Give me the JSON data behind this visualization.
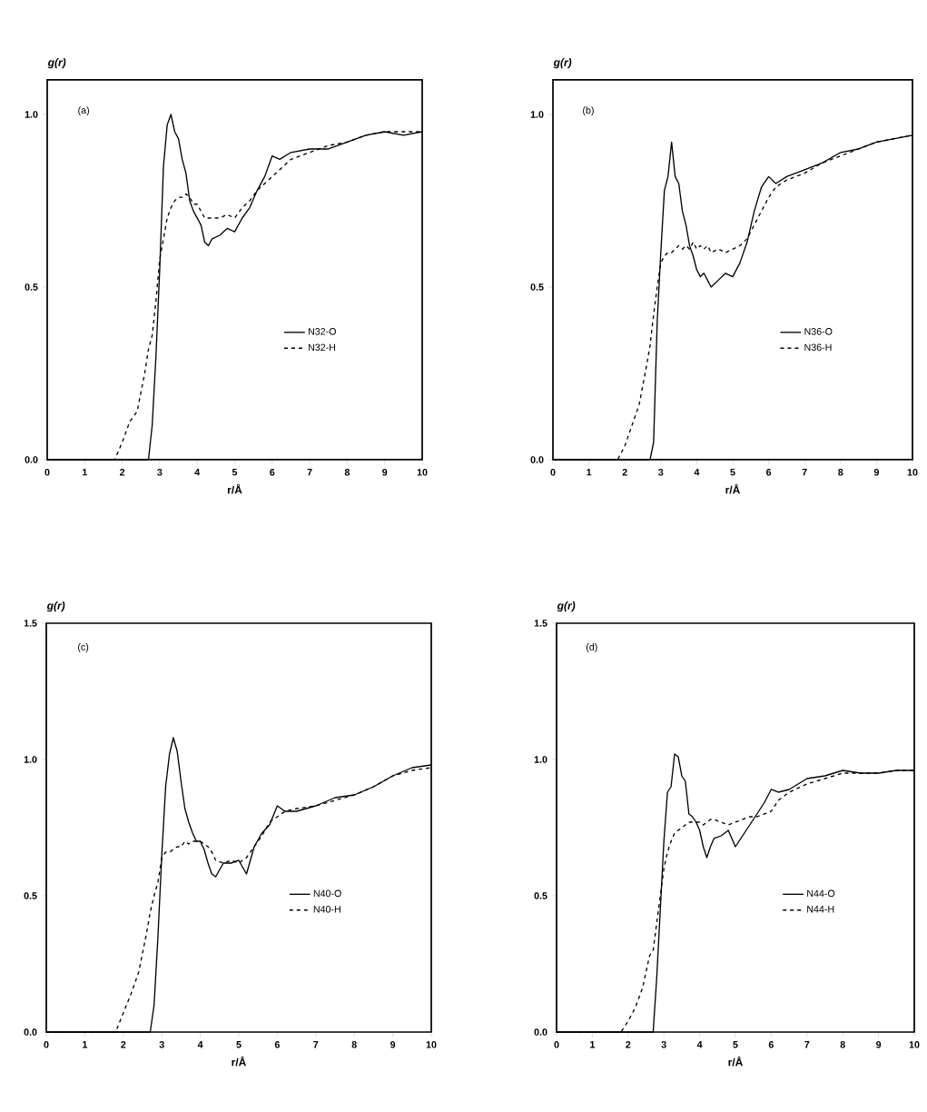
{
  "chart_data": [
    {
      "type": "line",
      "annotations": [
        "(a)"
      ],
      "ylabel": "g(r)",
      "xlabel": "r/Å",
      "legend": "right",
      "x": [
        0,
        1.8,
        2.0,
        2.2,
        2.4,
        2.6,
        2.7,
        2.8,
        2.9,
        3.0,
        3.1,
        3.2,
        3.3,
        3.4,
        3.5,
        3.6,
        3.7,
        3.8,
        3.9,
        4.0,
        4.1,
        4.2,
        4.3,
        4.4,
        4.6,
        4.8,
        5.0,
        5.2,
        5.4,
        5.6,
        5.8,
        6.0,
        6.2,
        6.5,
        7.0,
        7.5,
        8.0,
        8.5,
        9.0,
        9.5,
        10
      ],
      "series": [
        {
          "name": "N32-O",
          "color": "#000000",
          "line_style": "solid",
          "values": [
            0,
            0,
            0,
            0,
            0,
            0,
            0,
            0.1,
            0.3,
            0.55,
            0.85,
            0.97,
            1.0,
            0.95,
            0.93,
            0.87,
            0.83,
            0.75,
            0.72,
            0.7,
            0.68,
            0.63,
            0.62,
            0.64,
            0.65,
            0.67,
            0.66,
            0.7,
            0.73,
            0.78,
            0.82,
            0.88,
            0.87,
            0.89,
            0.9,
            0.9,
            0.92,
            0.94,
            0.95,
            0.94,
            0.95
          ]
        },
        {
          "name": "N32-H",
          "color": "#000000",
          "line_style": "dashed",
          "values": [
            0,
            0,
            0.05,
            0.11,
            0.14,
            0.25,
            0.32,
            0.36,
            0.46,
            0.58,
            0.64,
            0.7,
            0.73,
            0.75,
            0.76,
            0.76,
            0.77,
            0.76,
            0.74,
            0.74,
            0.72,
            0.7,
            0.7,
            0.7,
            0.7,
            0.71,
            0.7,
            0.73,
            0.75,
            0.78,
            0.8,
            0.82,
            0.84,
            0.87,
            0.89,
            0.91,
            0.92,
            0.94,
            0.95,
            0.95,
            0.95
          ]
        }
      ],
      "xlim": [
        0,
        10
      ],
      "ylim": [
        0,
        1.1
      ],
      "xticks": [
        0,
        1,
        2,
        3,
        4,
        5,
        6,
        7,
        8,
        9,
        10
      ],
      "yticks": [
        {
          "value": 0,
          "label": "0.0"
        },
        {
          "value": 0.5,
          "label": "0.5"
        },
        {
          "value": 1,
          "label": "1.0"
        }
      ]
    },
    {
      "type": "line",
      "annotations": [
        "(b)"
      ],
      "ylabel": "g(r)",
      "xlabel": "r/Å",
      "legend": "right",
      "x": [
        0,
        1.8,
        2.0,
        2.2,
        2.4,
        2.6,
        2.7,
        2.8,
        2.9,
        3.0,
        3.1,
        3.2,
        3.3,
        3.4,
        3.5,
        3.6,
        3.7,
        3.8,
        3.9,
        4.0,
        4.1,
        4.2,
        4.3,
        4.4,
        4.6,
        4.8,
        5.0,
        5.2,
        5.4,
        5.6,
        5.8,
        6.0,
        6.2,
        6.5,
        7.0,
        7.5,
        8.0,
        8.5,
        9.0,
        9.5,
        10
      ],
      "series": [
        {
          "name": "N36-O",
          "color": "#000000",
          "line_style": "solid",
          "values": [
            0,
            0,
            0,
            0,
            0,
            0,
            0,
            0.05,
            0.4,
            0.6,
            0.78,
            0.82,
            0.92,
            0.82,
            0.8,
            0.72,
            0.68,
            0.62,
            0.59,
            0.55,
            0.53,
            0.54,
            0.52,
            0.5,
            0.52,
            0.54,
            0.53,
            0.57,
            0.63,
            0.72,
            0.79,
            0.82,
            0.8,
            0.82,
            0.84,
            0.86,
            0.89,
            0.9,
            0.92,
            0.93,
            0.94
          ]
        },
        {
          "name": "N36-H",
          "color": "#000000",
          "line_style": "dashed",
          "values": [
            0,
            0,
            0.04,
            0.1,
            0.16,
            0.27,
            0.33,
            0.42,
            0.5,
            0.57,
            0.59,
            0.6,
            0.6,
            0.61,
            0.62,
            0.61,
            0.62,
            0.61,
            0.63,
            0.61,
            0.62,
            0.61,
            0.62,
            0.6,
            0.61,
            0.6,
            0.61,
            0.62,
            0.64,
            0.68,
            0.72,
            0.76,
            0.79,
            0.81,
            0.83,
            0.86,
            0.88,
            0.9,
            0.92,
            0.93,
            0.94
          ]
        }
      ],
      "xlim": [
        0,
        10
      ],
      "ylim": [
        0,
        1.1
      ],
      "xticks": [
        0,
        1,
        2,
        3,
        4,
        5,
        6,
        7,
        8,
        9,
        10
      ],
      "yticks": [
        {
          "value": 0,
          "label": "0.0"
        },
        {
          "value": 0.5,
          "label": "0.5"
        },
        {
          "value": 1,
          "label": "1.0"
        }
      ]
    },
    {
      "type": "line",
      "annotations": [
        "(c)"
      ],
      "ylabel": "g(r)",
      "xlabel": "r/Å",
      "legend": "right",
      "x": [
        0,
        1.8,
        2.0,
        2.2,
        2.4,
        2.6,
        2.7,
        2.8,
        2.9,
        3.0,
        3.1,
        3.2,
        3.3,
        3.4,
        3.5,
        3.6,
        3.7,
        3.8,
        3.9,
        4.0,
        4.1,
        4.2,
        4.3,
        4.4,
        4.6,
        4.8,
        5.0,
        5.2,
        5.4,
        5.6,
        5.8,
        6.0,
        6.2,
        6.5,
        7.0,
        7.5,
        8.0,
        8.5,
        9.0,
        9.5,
        10
      ],
      "series": [
        {
          "name": "N40-O",
          "color": "#000000",
          "line_style": "solid",
          "values": [
            0,
            0,
            0,
            0,
            0,
            0,
            0,
            0.1,
            0.35,
            0.65,
            0.9,
            1.02,
            1.08,
            1.03,
            0.92,
            0.82,
            0.77,
            0.73,
            0.7,
            0.7,
            0.67,
            0.62,
            0.58,
            0.57,
            0.62,
            0.62,
            0.63,
            0.58,
            0.68,
            0.73,
            0.76,
            0.83,
            0.81,
            0.81,
            0.83,
            0.86,
            0.87,
            0.9,
            0.94,
            0.97,
            0.98
          ]
        },
        {
          "name": "N40-H",
          "color": "#000000",
          "line_style": "dashed",
          "values": [
            0,
            0,
            0.07,
            0.14,
            0.22,
            0.36,
            0.44,
            0.5,
            0.55,
            0.64,
            0.66,
            0.66,
            0.67,
            0.68,
            0.68,
            0.7,
            0.69,
            0.7,
            0.7,
            0.7,
            0.69,
            0.68,
            0.66,
            0.63,
            0.62,
            0.63,
            0.62,
            0.64,
            0.68,
            0.72,
            0.77,
            0.79,
            0.81,
            0.82,
            0.83,
            0.85,
            0.87,
            0.9,
            0.94,
            0.96,
            0.97
          ]
        }
      ],
      "xlim": [
        0,
        10
      ],
      "ylim": [
        0,
        1.5
      ],
      "xticks": [
        0,
        1,
        2,
        3,
        4,
        5,
        6,
        7,
        8,
        9,
        10
      ],
      "yticks": [
        {
          "value": 0,
          "label": "0.0"
        },
        {
          "value": 0.5,
          "label": "0.5"
        },
        {
          "value": 1,
          "label": "1.0"
        },
        {
          "value": 1.5,
          "label": "1.5"
        }
      ]
    },
    {
      "type": "line",
      "annotations": [
        "(d)"
      ],
      "ylabel": "g(r)",
      "xlabel": "r/Å",
      "legend": "right",
      "x": [
        0,
        1.8,
        2.0,
        2.2,
        2.4,
        2.6,
        2.7,
        2.8,
        2.9,
        3.0,
        3.1,
        3.2,
        3.3,
        3.4,
        3.5,
        3.6,
        3.7,
        3.8,
        3.9,
        4.0,
        4.1,
        4.2,
        4.3,
        4.4,
        4.6,
        4.8,
        5.0,
        5.2,
        5.4,
        5.6,
        5.8,
        6.0,
        6.2,
        6.5,
        7.0,
        7.5,
        8.0,
        8.5,
        9.0,
        9.5,
        10
      ],
      "series": [
        {
          "name": "N44-O",
          "color": "#000000",
          "line_style": "solid",
          "values": [
            0,
            0,
            0,
            0,
            0,
            0,
            0,
            0.2,
            0.45,
            0.7,
            0.88,
            0.9,
            1.02,
            1.01,
            0.94,
            0.92,
            0.8,
            0.79,
            0.77,
            0.74,
            0.68,
            0.64,
            0.68,
            0.71,
            0.72,
            0.74,
            0.68,
            0.72,
            0.76,
            0.8,
            0.84,
            0.89,
            0.88,
            0.89,
            0.93,
            0.94,
            0.96,
            0.95,
            0.95,
            0.96,
            0.96
          ]
        },
        {
          "name": "N44-H",
          "color": "#000000",
          "line_style": "dashed",
          "values": [
            0,
            0,
            0.04,
            0.09,
            0.16,
            0.28,
            0.3,
            0.4,
            0.5,
            0.6,
            0.66,
            0.7,
            0.73,
            0.74,
            0.75,
            0.76,
            0.77,
            0.77,
            0.77,
            0.77,
            0.76,
            0.77,
            0.78,
            0.78,
            0.77,
            0.76,
            0.77,
            0.78,
            0.79,
            0.79,
            0.8,
            0.81,
            0.85,
            0.88,
            0.91,
            0.93,
            0.95,
            0.95,
            0.95,
            0.96,
            0.96
          ]
        }
      ],
      "xlim": [
        0,
        10
      ],
      "ylim": [
        0,
        1.5
      ],
      "xticks": [
        0,
        1,
        2,
        3,
        4,
        5,
        6,
        7,
        8,
        9,
        10
      ],
      "yticks": [
        {
          "value": 0,
          "label": "0.0"
        },
        {
          "value": 0.5,
          "label": "0.5"
        },
        {
          "value": 1,
          "label": "1.0"
        },
        {
          "value": 1.5,
          "label": "1.5"
        }
      ]
    }
  ]
}
